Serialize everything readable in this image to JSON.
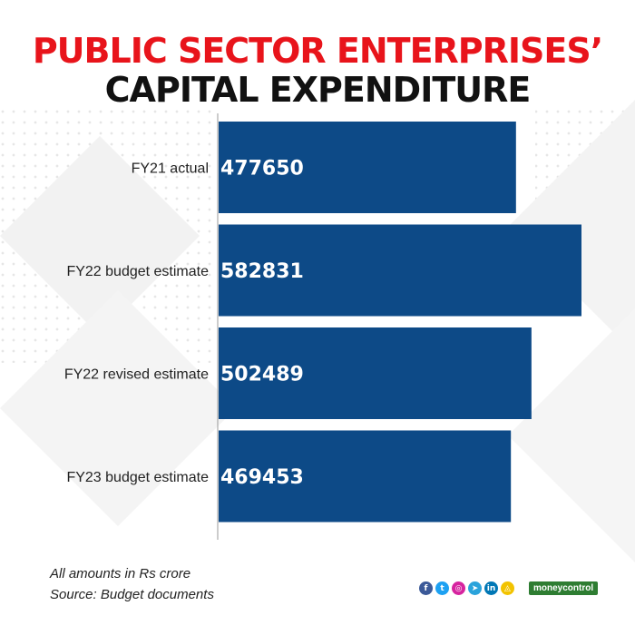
{
  "title_line1": "PUBLIC SECTOR ENTERPRISES’",
  "title_line2": "CAPITAL EXPENDITURE",
  "chart_data": {
    "type": "bar",
    "orientation": "horizontal",
    "title": "PUBLIC SECTOR ENTERPRISES’ CAPITAL EXPENDITURE",
    "categories": [
      "FY21 actual",
      "FY22 budget estimate",
      "FY22 revised estimate",
      "FY23 budget estimate"
    ],
    "values": [
      477650,
      582831,
      502489,
      469453
    ],
    "value_labels": [
      "477650",
      "582831",
      "502489",
      "469453"
    ],
    "xlabel": "",
    "ylabel": "",
    "xlim": [
      0,
      600000
    ],
    "grid": false,
    "bar_color": "#0d4a87",
    "label_color": "#ffffff"
  },
  "notes": {
    "units": "All amounts in Rs crore",
    "source": "Source: Budget documents"
  },
  "social_icons": [
    {
      "name": "facebook-icon",
      "glyph": "f",
      "color": "#3b5998"
    },
    {
      "name": "twitter-icon",
      "glyph": "t",
      "color": "#1da1f2"
    },
    {
      "name": "instagram-icon",
      "glyph": "◎",
      "color": "#d6249f"
    },
    {
      "name": "telegram-icon",
      "glyph": "➤",
      "color": "#2aa3db"
    },
    {
      "name": "linkedin-icon",
      "glyph": "in",
      "color": "#0077b5"
    },
    {
      "name": "snapchat-icon",
      "glyph": "◬",
      "color": "#f2c300"
    }
  ],
  "brand": "moneycontrol"
}
